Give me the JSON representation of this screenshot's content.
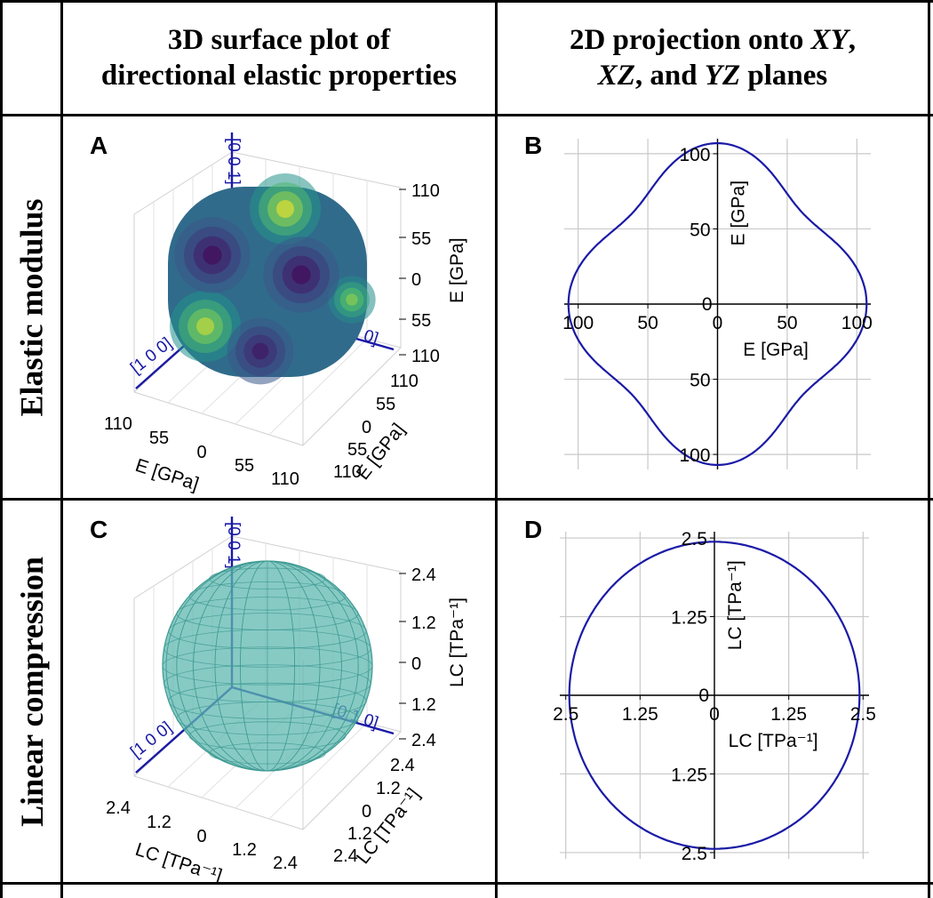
{
  "header": {
    "col1": [
      "3D surface plot of",
      "directional elastic properties"
    ],
    "col2_line1": [
      "2D projection onto ",
      "XY",
      ","
    ],
    "col2_line2": [
      "XZ",
      ", and ",
      "YZ",
      " planes"
    ]
  },
  "rows": [
    {
      "label": "Elastic modulus"
    },
    {
      "label": "Linear compression"
    }
  ],
  "chart_data": [
    {
      "panel": "A",
      "type": "surface3d",
      "colormap": "viridis",
      "z_axis": {
        "ticks": [
          "110",
          "55",
          "0",
          "55",
          "110"
        ],
        "label": "E [GPa]"
      },
      "x_axis": {
        "ticks": [
          "110",
          "55",
          "0",
          "55",
          "110"
        ],
        "label": "E [GPa]"
      },
      "y_axis": {
        "ticks": [
          "110",
          "55",
          "0",
          "55",
          "110"
        ],
        "label": "E [GPa]"
      },
      "direction_labels": [
        "[0 0 1]",
        "[0 1 0]",
        "[1 0 0]"
      ],
      "max_value": 110
    },
    {
      "panel": "B",
      "type": "line",
      "xlabel": "E [GPa]",
      "ylabel": "E [GPa]",
      "x_ticks": [
        "100",
        "50",
        "0",
        "50",
        "100"
      ],
      "y_ticks": [
        "100",
        "50",
        "0",
        "50",
        "100"
      ],
      "xlim": [
        -110,
        110
      ],
      "ylim": [
        -110,
        110
      ],
      "grid": true,
      "line_color": "#1a1aa6",
      "curve": {
        "radius_axis": 107,
        "radius_diagonal": 86
      }
    },
    {
      "panel": "C",
      "type": "surface3d",
      "colormap": "teal-wireframe",
      "z_axis": {
        "ticks": [
          "2.4",
          "1.2",
          "0",
          "1.2",
          "2.4"
        ],
        "label": "LC [TPa⁻¹]"
      },
      "x_axis": {
        "ticks": [
          "2.4",
          "1.2",
          "0",
          "1.2",
          "2.4"
        ],
        "label": "LC [TPa⁻¹]"
      },
      "y_axis": {
        "ticks": [
          "2.4",
          "1.2",
          "0",
          "1.2",
          "2.4"
        ],
        "label": "LC [TPa⁻¹]"
      },
      "direction_labels": [
        "[0 0 1]",
        "[0 1 0]",
        "[1 0 0]"
      ],
      "max_value": 2.4
    },
    {
      "panel": "D",
      "type": "line",
      "xlabel": "LC [TPa⁻¹]",
      "ylabel": "LC [TPa⁻¹]",
      "x_ticks": [
        "2.5",
        "1.25",
        "0",
        "1.25",
        "2.5"
      ],
      "y_ticks": [
        "2.5",
        "1.25",
        "0",
        "1.25",
        "2.5"
      ],
      "xlim": [
        -2.6,
        2.6
      ],
      "ylim": [
        -2.6,
        2.6
      ],
      "grid": true,
      "line_color": "#1a1aa6",
      "curve": {
        "radius_axis": 2.44,
        "radius_diagonal": 2.44
      }
    }
  ],
  "colors": {
    "axis_blue": "#1a1aa6",
    "teal": "#5fb8b0",
    "grid": "#c8c8c8"
  }
}
